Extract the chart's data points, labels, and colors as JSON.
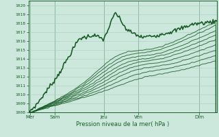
{
  "title": "",
  "xlabel": "Pression niveau de la mer( hPa )",
  "ylim": [
    1008,
    1020.5
  ],
  "xlim": [
    0,
    130
  ],
  "yticks": [
    1008,
    1009,
    1010,
    1011,
    1012,
    1013,
    1014,
    1015,
    1016,
    1017,
    1018,
    1019,
    1020
  ],
  "day_labels": [
    "Mer",
    "Sam",
    "Jeu",
    "Ven",
    "Dim"
  ],
  "day_positions": [
    1,
    18,
    52,
    76,
    118
  ],
  "bg_color": "#cce8dc",
  "grid_color": "#aaccbb",
  "line_color": "#1a5c28",
  "axis_label_color": "#1a5c28",
  "tick_color": "#1a5c28",
  "figsize": [
    3.2,
    2.0
  ],
  "dpi": 100
}
